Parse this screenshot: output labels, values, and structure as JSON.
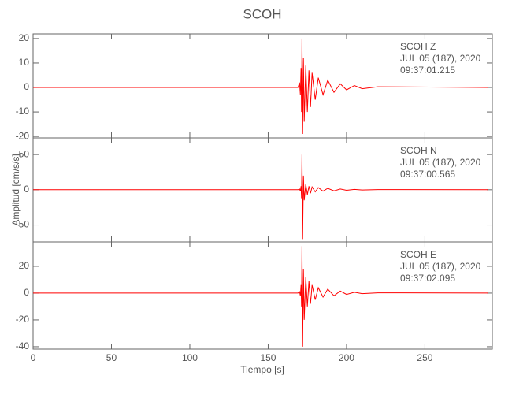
{
  "chart_data": [
    {
      "type": "line",
      "title": "SCOH",
      "color": "#ff0000",
      "annotations": [
        "SCOH   Z",
        "JUL 05 (187), 2020",
        "09:37:01.215"
      ],
      "x": [
        0,
        169,
        170,
        170.5,
        171,
        171.3,
        171.6,
        172,
        172.5,
        173,
        174,
        175,
        176,
        177,
        178,
        180,
        182,
        185,
        188,
        192,
        196,
        200,
        205,
        210,
        220,
        290
      ],
      "values": [
        0,
        0,
        2,
        -3,
        8,
        -10,
        20,
        -19,
        12,
        -14,
        9,
        -10,
        7,
        -8,
        6,
        -5,
        4,
        -3,
        3,
        -2,
        1.5,
        -1,
        0.8,
        -0.5,
        0.3,
        0
      ],
      "xlim": [
        0,
        293
      ],
      "xticks": [
        0,
        50,
        100,
        150,
        200,
        250
      ],
      "ylim": [
        -20.6,
        21.9
      ],
      "yticks": [
        -20,
        -10,
        0,
        10,
        20
      ]
    },
    {
      "type": "line",
      "ylabel": "Amplitud [cm/s/s]",
      "color": "#ff0000",
      "annotations": [
        "SCOH   N",
        "JUL 05 (187), 2020",
        "09:37:00.565"
      ],
      "x": [
        0,
        169,
        170,
        170.5,
        171,
        171.3,
        171.6,
        172,
        172.5,
        173,
        174,
        175,
        176,
        177,
        178,
        180,
        182,
        185,
        188,
        192,
        196,
        200,
        205,
        210,
        220,
        290
      ],
      "values": [
        0,
        0,
        1,
        -2,
        5,
        -12,
        50,
        -70,
        20,
        -15,
        8,
        -7,
        5,
        -5,
        4,
        -3,
        3,
        -2,
        2,
        -1.5,
        1,
        -0.8,
        0.5,
        -0.3,
        0.2,
        0
      ],
      "xlim": [
        0,
        293
      ],
      "xticks": [
        0,
        50,
        100,
        150,
        200,
        250
      ],
      "ylim": [
        -74,
        73.6
      ],
      "yticks": [
        -50,
        0,
        50
      ]
    },
    {
      "type": "line",
      "xlabel": "Tiempo [s]",
      "color": "#ff0000",
      "annotations": [
        "SCOH   E",
        "JUL 05 (187), 2020",
        "09:37:02.095"
      ],
      "x": [
        0,
        169,
        170,
        170.5,
        171,
        171.3,
        171.6,
        172,
        172.5,
        173,
        174,
        175,
        176,
        177,
        178,
        180,
        182,
        185,
        188,
        192,
        196,
        200,
        205,
        210,
        220,
        290
      ],
      "values": [
        0,
        0,
        1,
        -2,
        6,
        -10,
        35,
        -40,
        18,
        -20,
        12,
        -10,
        9,
        -8,
        6,
        -5,
        4,
        -3,
        3,
        -2,
        1.5,
        -1,
        0.6,
        -0.4,
        0.2,
        0
      ],
      "xlim": [
        0,
        293
      ],
      "xticks": [
        0,
        50,
        100,
        150,
        200,
        250
      ],
      "ylim": [
        -41.8,
        38.2
      ],
      "yticks": [
        -40,
        -20,
        0,
        20
      ]
    }
  ]
}
